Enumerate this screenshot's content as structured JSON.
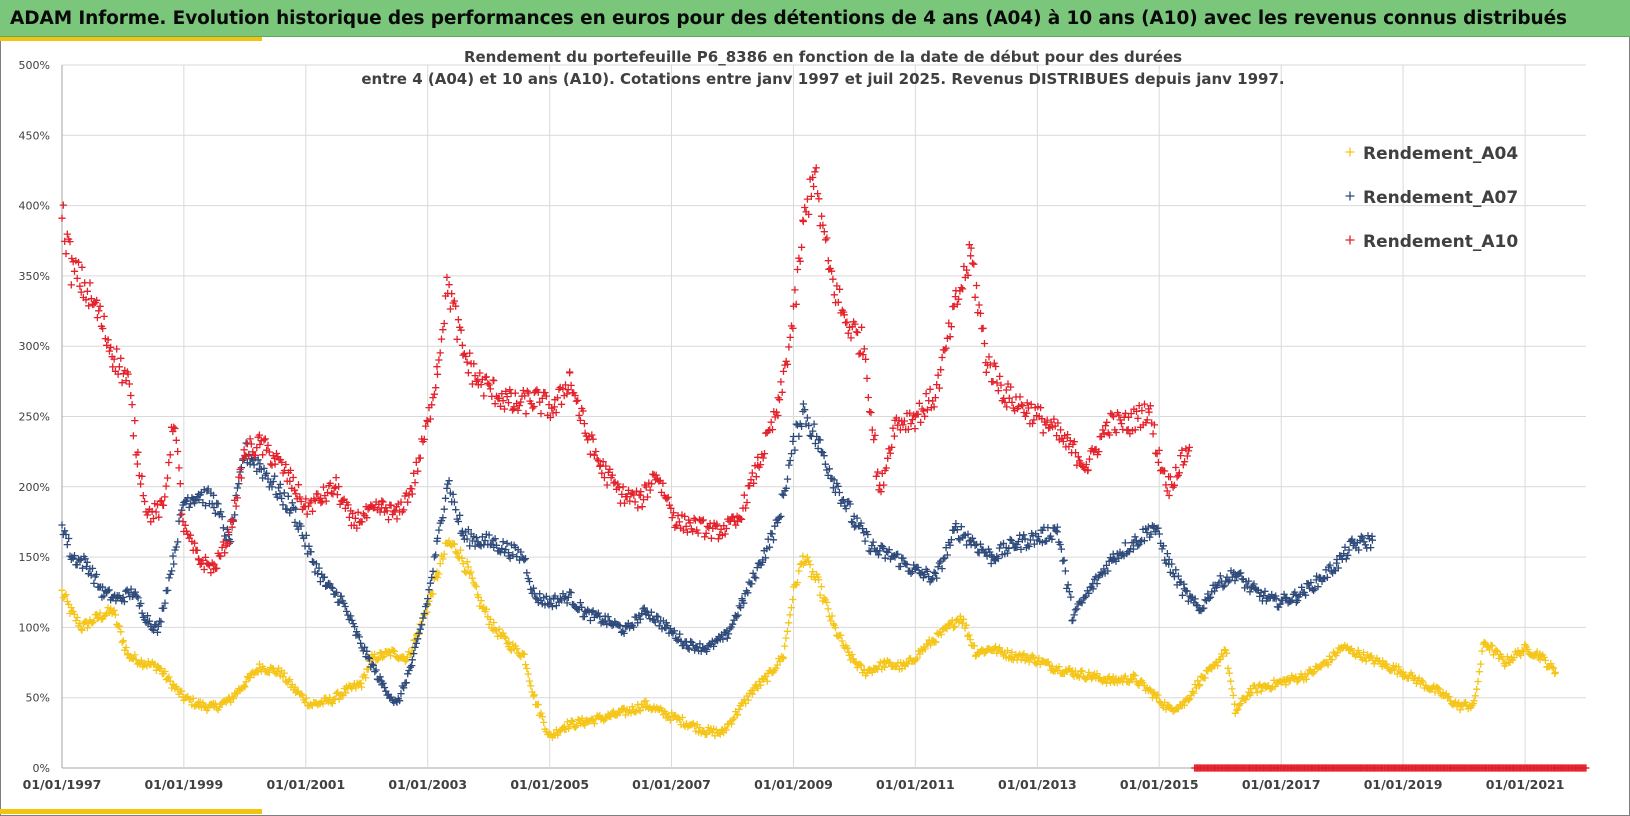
{
  "banner": {
    "title": "ADAM Informe. Evolution historique des performances en euros pour des détentions de 4 ans (A04) à 10 ans (A10) avec les revenus connus distribués"
  },
  "colors": {
    "banner_bg": "#7ac77c",
    "accent": "#f2c40f",
    "A04": "#f5c518",
    "A07": "#2e4a7a",
    "A10": "#e4202a",
    "grid": "#d9d9d9"
  },
  "chart_data": {
    "type": "scatter",
    "marker": "plus",
    "title_line1": "Rendement du portefeuille P6_8386 en fonction de la date de début pour des durées",
    "title_line2": "entre 4 (A04) et 10 ans (A10). Cotations entre janv 1997 et juil 2025. Revenus DISTRIBUES depuis janv 1997.",
    "xlabel": "",
    "ylabel": "",
    "x_axis": {
      "type": "date",
      "range": [
        "1997-01-01",
        "2022-01-01"
      ],
      "tick_labels": [
        "01/01/1997",
        "01/01/1999",
        "01/01/2001",
        "01/01/2003",
        "01/01/2005",
        "01/01/2007",
        "01/01/2009",
        "01/01/2011",
        "01/01/2013",
        "01/01/2015",
        "01/01/2017",
        "01/01/2019",
        "01/01/2021"
      ]
    },
    "y_axis": {
      "range": [
        0,
        500
      ],
      "unit": "%",
      "tick_labels": [
        "0%",
        "50%",
        "100%",
        "150%",
        "200%",
        "250%",
        "300%",
        "350%",
        "400%",
        "450%",
        "500%"
      ]
    },
    "grid": true,
    "legend_position": "top-right",
    "series": [
      {
        "name": "Rendement_A04",
        "color": "#f5c518",
        "x_end": "2021-07-01",
        "points": [
          [
            "1997-01",
            125
          ],
          [
            "1997-03",
            110
          ],
          [
            "1997-05",
            100
          ],
          [
            "1997-08",
            107
          ],
          [
            "1997-11",
            112
          ],
          [
            "1998-02",
            80
          ],
          [
            "1998-05",
            75
          ],
          [
            "1998-08",
            72
          ],
          [
            "1998-11",
            58
          ],
          [
            "1999-01",
            50
          ],
          [
            "1999-04",
            45
          ],
          [
            "1999-07",
            43
          ],
          [
            "1999-10",
            48
          ],
          [
            "2000-01",
            60
          ],
          [
            "2000-04",
            72
          ],
          [
            "2000-08",
            68
          ],
          [
            "2000-11",
            55
          ],
          [
            "2001-02",
            45
          ],
          [
            "2001-06",
            48
          ],
          [
            "2001-09",
            55
          ],
          [
            "2001-12",
            60
          ],
          [
            "2002-02",
            78
          ],
          [
            "2002-06",
            82
          ],
          [
            "2002-09",
            78
          ],
          [
            "2002-11",
            95
          ],
          [
            "2003-01",
            115
          ],
          [
            "2003-03",
            138
          ],
          [
            "2003-05",
            160
          ],
          [
            "2003-07",
            155
          ],
          [
            "2003-09",
            140
          ],
          [
            "2003-11",
            120
          ],
          [
            "2004-02",
            100
          ],
          [
            "2004-05",
            88
          ],
          [
            "2004-08",
            80
          ],
          [
            "2004-10",
            50
          ],
          [
            "2005-01",
            22
          ],
          [
            "2005-04",
            30
          ],
          [
            "2005-08",
            33
          ],
          [
            "2005-12",
            36
          ],
          [
            "2006-04",
            40
          ],
          [
            "2006-08",
            45
          ],
          [
            "2006-12",
            38
          ],
          [
            "2007-04",
            32
          ],
          [
            "2007-08",
            26
          ],
          [
            "2007-11",
            25
          ],
          [
            "2008-02",
            40
          ],
          [
            "2008-05",
            55
          ],
          [
            "2008-08",
            65
          ],
          [
            "2008-11",
            80
          ],
          [
            "2009-01",
            125
          ],
          [
            "2009-03",
            150
          ],
          [
            "2009-06",
            130
          ],
          [
            "2009-09",
            100
          ],
          [
            "2009-12",
            80
          ],
          [
            "2010-03",
            68
          ],
          [
            "2010-07",
            74
          ],
          [
            "2010-11",
            72
          ],
          [
            "2011-03",
            86
          ],
          [
            "2011-07",
            98
          ],
          [
            "2011-10",
            108
          ],
          [
            "2012-01",
            82
          ],
          [
            "2012-04",
            85
          ],
          [
            "2012-08",
            80
          ],
          [
            "2012-12",
            78
          ],
          [
            "2013-04",
            72
          ],
          [
            "2013-08",
            68
          ],
          [
            "2013-12",
            65
          ],
          [
            "2014-04",
            62
          ],
          [
            "2014-08",
            64
          ],
          [
            "2014-12",
            52
          ],
          [
            "2015-03",
            42
          ],
          [
            "2015-06",
            46
          ],
          [
            "2015-09",
            62
          ],
          [
            "2015-12",
            72
          ],
          [
            "2016-02",
            85
          ],
          [
            "2016-04",
            40
          ],
          [
            "2016-07",
            55
          ],
          [
            "2016-10",
            58
          ],
          [
            "2017-02",
            62
          ],
          [
            "2017-06",
            66
          ],
          [
            "2017-10",
            75
          ],
          [
            "2018-01",
            86
          ],
          [
            "2018-05",
            80
          ],
          [
            "2018-09",
            74
          ],
          [
            "2019-01",
            68
          ],
          [
            "2019-05",
            60
          ],
          [
            "2019-09",
            52
          ],
          [
            "2019-12",
            44
          ],
          [
            "2020-03",
            45
          ],
          [
            "2020-05",
            90
          ],
          [
            "2020-09",
            75
          ],
          [
            "2021-01",
            85
          ],
          [
            "2021-04",
            80
          ],
          [
            "2021-07",
            68
          ]
        ]
      },
      {
        "name": "Rendement_A07",
        "color": "#2e4a7a",
        "x_end": "2018-07-01",
        "points": [
          [
            "1997-01",
            175
          ],
          [
            "1997-03",
            150
          ],
          [
            "1997-06",
            145
          ],
          [
            "1997-09",
            125
          ],
          [
            "1997-12",
            120
          ],
          [
            "1998-03",
            125
          ],
          [
            "1998-06",
            105
          ],
          [
            "1998-08",
            98
          ],
          [
            "1998-11",
            150
          ],
          [
            "1999-01",
            190
          ],
          [
            "1999-04",
            195
          ],
          [
            "1999-07",
            190
          ],
          [
            "1999-10",
            160
          ],
          [
            "2000-01",
            225
          ],
          [
            "2000-04",
            215
          ],
          [
            "2000-08",
            195
          ],
          [
            "2000-11",
            180
          ],
          [
            "2001-02",
            150
          ],
          [
            "2001-05",
            130
          ],
          [
            "2001-08",
            120
          ],
          [
            "2001-11",
            95
          ],
          [
            "2002-01",
            80
          ],
          [
            "2002-04",
            60
          ],
          [
            "2002-07",
            45
          ],
          [
            "2002-10",
            75
          ],
          [
            "2003-01",
            120
          ],
          [
            "2003-03",
            160
          ],
          [
            "2003-05",
            205
          ],
          [
            "2003-08",
            165
          ],
          [
            "2003-11",
            162
          ],
          [
            "2004-02",
            160
          ],
          [
            "2004-05",
            155
          ],
          [
            "2004-08",
            150
          ],
          [
            "2004-10",
            122
          ],
          [
            "2005-01",
            118
          ],
          [
            "2005-05",
            122
          ],
          [
            "2005-08",
            110
          ],
          [
            "2005-12",
            105
          ],
          [
            "2006-04",
            98
          ],
          [
            "2006-08",
            112
          ],
          [
            "2006-12",
            100
          ],
          [
            "2007-04",
            88
          ],
          [
            "2007-08",
            85
          ],
          [
            "2007-12",
            95
          ],
          [
            "2008-03",
            118
          ],
          [
            "2008-07",
            150
          ],
          [
            "2008-10",
            175
          ],
          [
            "2009-01",
            230
          ],
          [
            "2009-03",
            255
          ],
          [
            "2009-06",
            230
          ],
          [
            "2009-09",
            205
          ],
          [
            "2010-01",
            175
          ],
          [
            "2010-05",
            155
          ],
          [
            "2010-09",
            150
          ],
          [
            "2011-01",
            140
          ],
          [
            "2011-05",
            135
          ],
          [
            "2011-09",
            170
          ],
          [
            "2011-12",
            162
          ],
          [
            "2012-04",
            150
          ],
          [
            "2012-09",
            160
          ],
          [
            "2013-02",
            165
          ],
          [
            "2013-05",
            170
          ],
          [
            "2013-08",
            108
          ],
          [
            "2013-12",
            130
          ],
          [
            "2014-04",
            150
          ],
          [
            "2014-08",
            160
          ],
          [
            "2014-12",
            172
          ],
          [
            "2015-03",
            145
          ],
          [
            "2015-06",
            125
          ],
          [
            "2015-09",
            112
          ],
          [
            "2015-12",
            130
          ],
          [
            "2016-04",
            138
          ],
          [
            "2016-08",
            125
          ],
          [
            "2016-12",
            118
          ],
          [
            "2017-04",
            122
          ],
          [
            "2017-08",
            132
          ],
          [
            "2017-12",
            145
          ],
          [
            "2018-03",
            158
          ],
          [
            "2018-07",
            162
          ]
        ]
      },
      {
        "name": "Rendement_A10",
        "color": "#e4202a",
        "x_end": "2015-07-01",
        "points": [
          [
            "1997-01",
            395
          ],
          [
            "1997-03",
            355
          ],
          [
            "1997-05",
            345
          ],
          [
            "1997-08",
            325
          ],
          [
            "1997-11",
            295
          ],
          [
            "1998-02",
            275
          ],
          [
            "1998-04",
            220
          ],
          [
            "1998-06",
            180
          ],
          [
            "1998-09",
            185
          ],
          [
            "1998-11",
            250
          ],
          [
            "1999-01",
            170
          ],
          [
            "1999-04",
            148
          ],
          [
            "1999-07",
            142
          ],
          [
            "1999-10",
            165
          ],
          [
            "2000-01",
            225
          ],
          [
            "2000-04",
            230
          ],
          [
            "2000-07",
            220
          ],
          [
            "2000-10",
            205
          ],
          [
            "2001-01",
            185
          ],
          [
            "2001-04",
            192
          ],
          [
            "2001-07",
            200
          ],
          [
            "2001-10",
            175
          ],
          [
            "2002-01",
            180
          ],
          [
            "2002-04",
            185
          ],
          [
            "2002-07",
            180
          ],
          [
            "2002-10",
            200
          ],
          [
            "2003-01",
            245
          ],
          [
            "2003-03",
            285
          ],
          [
            "2003-05",
            345
          ],
          [
            "2003-08",
            295
          ],
          [
            "2003-11",
            275
          ],
          [
            "2004-02",
            268
          ],
          [
            "2004-06",
            258
          ],
          [
            "2004-10",
            262
          ],
          [
            "2005-02",
            255
          ],
          [
            "2005-05",
            278
          ],
          [
            "2005-08",
            240
          ],
          [
            "2005-11",
            215
          ],
          [
            "2006-03",
            195
          ],
          [
            "2006-07",
            190
          ],
          [
            "2006-10",
            210
          ],
          [
            "2007-02",
            175
          ],
          [
            "2007-06",
            172
          ],
          [
            "2007-10",
            168
          ],
          [
            "2008-02",
            175
          ],
          [
            "2008-06",
            215
          ],
          [
            "2008-10",
            255
          ],
          [
            "2009-01",
            320
          ],
          [
            "2009-03",
            385
          ],
          [
            "2009-05",
            425
          ],
          [
            "2009-08",
            355
          ],
          [
            "2009-11",
            320
          ],
          [
            "2010-03",
            300
          ],
          [
            "2010-06",
            195
          ],
          [
            "2010-09",
            245
          ],
          [
            "2011-01",
            250
          ],
          [
            "2011-05",
            265
          ],
          [
            "2011-09",
            330
          ],
          [
            "2011-12",
            365
          ],
          [
            "2012-03",
            290
          ],
          [
            "2012-07",
            265
          ],
          [
            "2012-11",
            255
          ],
          [
            "2013-03",
            245
          ],
          [
            "2013-07",
            230
          ],
          [
            "2013-11",
            215
          ],
          [
            "2014-03",
            245
          ],
          [
            "2014-07",
            245
          ],
          [
            "2014-11",
            255
          ],
          [
            "2015-01",
            220
          ],
          [
            "2015-03",
            200
          ],
          [
            "2015-05",
            215
          ],
          [
            "2015-07",
            228
          ]
        ]
      }
    ],
    "zero_markers": {
      "series": "Rendement_A10",
      "x_start": "2015-08-01",
      "x_end": "2022-01-01",
      "value": 0
    }
  }
}
